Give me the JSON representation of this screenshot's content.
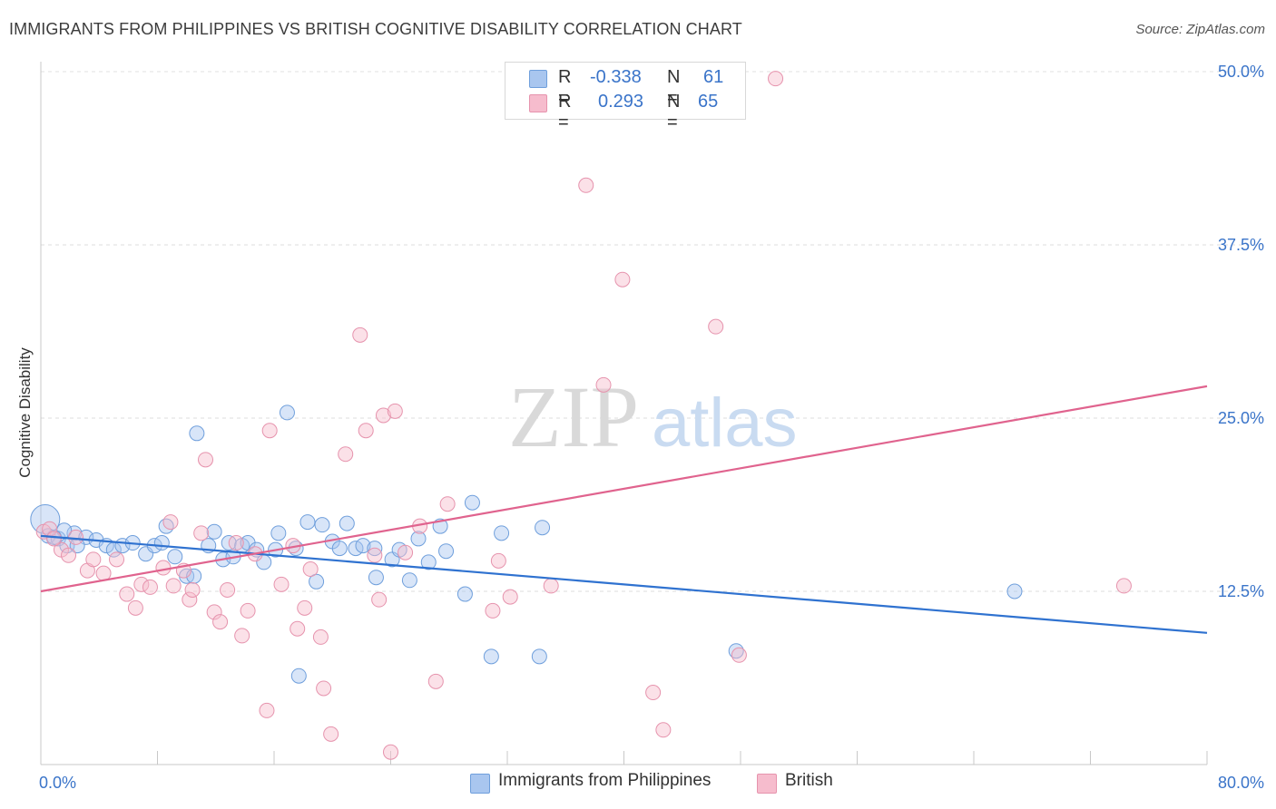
{
  "title": "IMMIGRANTS FROM PHILIPPINES VS BRITISH COGNITIVE DISABILITY CORRELATION CHART",
  "source": "Source: ZipAtlas.com",
  "watermark": {
    "zip": "ZIP",
    "atlas": "atlas"
  },
  "legend": {
    "r_label": "R =",
    "n_label": "N =",
    "series": [
      {
        "r": "-0.338",
        "n": "61",
        "color": "#a9c6ef",
        "edge": "#6f9fdc"
      },
      {
        "r": "0.293",
        "n": "65",
        "color": "#f6bccd",
        "edge": "#e693ad"
      }
    ]
  },
  "bottom_legend": [
    "Immigrants from Philippines",
    "British"
  ],
  "chart_data": {
    "type": "scatter",
    "xlabel": "",
    "ylabel": "Cognitive Disability",
    "xlim": [
      0,
      80
    ],
    "ylim": [
      0,
      50
    ],
    "x_tick_labels": [
      "0.0%",
      "80.0%"
    ],
    "y_tick_labels": [
      "12.5%",
      "25.0%",
      "37.5%",
      "50.0%"
    ],
    "y_ticks": [
      12.5,
      25.0,
      37.5,
      50.0
    ],
    "grid": true,
    "series": [
      {
        "name": "Immigrants from Philippines",
        "color": "#a9c6ef",
        "edge": "#6f9fdc",
        "line_color": "#2f72d0",
        "trend": [
          [
            0,
            16.5
          ],
          [
            80,
            9.5
          ]
        ],
        "points": [
          [
            0.3,
            17.7
          ],
          [
            0.5,
            16.5
          ],
          [
            1.2,
            16.3
          ],
          [
            1.8,
            15.8
          ],
          [
            2.3,
            16.7
          ],
          [
            3.1,
            16.4
          ],
          [
            3.8,
            16.2
          ],
          [
            4.5,
            15.8
          ],
          [
            5.0,
            15.5
          ],
          [
            5.6,
            15.8
          ],
          [
            6.3,
            16.0
          ],
          [
            7.2,
            15.2
          ],
          [
            7.8,
            15.8
          ],
          [
            8.3,
            16.0
          ],
          [
            8.6,
            17.2
          ],
          [
            9.2,
            15.0
          ],
          [
            10.0,
            13.6
          ],
          [
            10.5,
            13.6
          ],
          [
            10.7,
            23.9
          ],
          [
            11.5,
            15.8
          ],
          [
            11.9,
            16.8
          ],
          [
            12.5,
            14.8
          ],
          [
            12.9,
            16.0
          ],
          [
            13.2,
            15.0
          ],
          [
            13.8,
            15.8
          ],
          [
            14.2,
            16.0
          ],
          [
            14.8,
            15.5
          ],
          [
            15.3,
            14.6
          ],
          [
            16.1,
            15.5
          ],
          [
            16.3,
            16.7
          ],
          [
            16.9,
            25.4
          ],
          [
            17.5,
            15.6
          ],
          [
            18.3,
            17.5
          ],
          [
            18.9,
            13.2
          ],
          [
            19.3,
            17.3
          ],
          [
            20.0,
            16.1
          ],
          [
            20.5,
            15.6
          ],
          [
            21.0,
            17.4
          ],
          [
            21.6,
            15.6
          ],
          [
            22.1,
            15.8
          ],
          [
            22.9,
            15.6
          ],
          [
            23.0,
            13.5
          ],
          [
            24.1,
            14.8
          ],
          [
            24.6,
            15.5
          ],
          [
            25.3,
            13.3
          ],
          [
            25.9,
            16.3
          ],
          [
            26.6,
            14.6
          ],
          [
            27.4,
            17.2
          ],
          [
            27.8,
            15.4
          ],
          [
            29.1,
            12.3
          ],
          [
            29.6,
            18.9
          ],
          [
            30.9,
            7.8
          ],
          [
            31.6,
            16.7
          ],
          [
            34.2,
            7.8
          ],
          [
            34.4,
            17.1
          ],
          [
            47.7,
            8.2
          ],
          [
            66.8,
            12.5
          ],
          [
            17.7,
            6.4
          ],
          [
            2.5,
            15.8
          ],
          [
            1.6,
            16.9
          ],
          [
            0.9,
            16.4
          ]
        ]
      },
      {
        "name": "British",
        "color": "#f6bccd",
        "edge": "#e693ad",
        "line_color": "#e0638e",
        "trend": [
          [
            0,
            12.5
          ],
          [
            80,
            27.3
          ]
        ],
        "points": [
          [
            0.2,
            16.8
          ],
          [
            0.6,
            17.0
          ],
          [
            1.4,
            15.5
          ],
          [
            1.9,
            15.1
          ],
          [
            2.4,
            16.4
          ],
          [
            3.2,
            14.0
          ],
          [
            3.6,
            14.8
          ],
          [
            4.3,
            13.8
          ],
          [
            5.2,
            14.8
          ],
          [
            5.9,
            12.3
          ],
          [
            6.5,
            11.3
          ],
          [
            6.9,
            13.0
          ],
          [
            7.5,
            12.8
          ],
          [
            8.4,
            14.2
          ],
          [
            8.9,
            17.5
          ],
          [
            9.1,
            12.9
          ],
          [
            9.8,
            14.0
          ],
          [
            10.2,
            11.9
          ],
          [
            10.4,
            12.6
          ],
          [
            11.0,
            16.7
          ],
          [
            11.3,
            22.0
          ],
          [
            11.9,
            11.0
          ],
          [
            12.3,
            10.3
          ],
          [
            12.8,
            12.6
          ],
          [
            13.4,
            16.0
          ],
          [
            13.8,
            9.3
          ],
          [
            14.2,
            11.1
          ],
          [
            14.7,
            15.2
          ],
          [
            15.5,
            3.9
          ],
          [
            15.7,
            24.1
          ],
          [
            16.5,
            13.0
          ],
          [
            17.3,
            15.8
          ],
          [
            17.6,
            9.8
          ],
          [
            18.1,
            11.3
          ],
          [
            18.5,
            14.1
          ],
          [
            19.2,
            9.2
          ],
          [
            19.4,
            5.5
          ],
          [
            19.9,
            2.2
          ],
          [
            20.9,
            22.4
          ],
          [
            21.9,
            31.0
          ],
          [
            22.3,
            24.1
          ],
          [
            22.9,
            15.1
          ],
          [
            23.2,
            11.9
          ],
          [
            23.5,
            25.2
          ],
          [
            24.3,
            25.5
          ],
          [
            24.0,
            0.9
          ],
          [
            25.0,
            15.3
          ],
          [
            26.0,
            17.2
          ],
          [
            27.1,
            6.0
          ],
          [
            27.9,
            18.8
          ],
          [
            31.0,
            11.1
          ],
          [
            31.4,
            14.7
          ],
          [
            32.2,
            12.1
          ],
          [
            35.0,
            12.9
          ],
          [
            37.4,
            41.8
          ],
          [
            38.6,
            27.4
          ],
          [
            39.9,
            35.0
          ],
          [
            41.6,
            48.3
          ],
          [
            42.0,
            5.2
          ],
          [
            42.7,
            2.5
          ],
          [
            46.3,
            31.6
          ],
          [
            47.9,
            7.9
          ],
          [
            50.4,
            49.5
          ],
          [
            74.3,
            12.9
          ],
          [
            0.9,
            16.3
          ]
        ]
      }
    ]
  }
}
